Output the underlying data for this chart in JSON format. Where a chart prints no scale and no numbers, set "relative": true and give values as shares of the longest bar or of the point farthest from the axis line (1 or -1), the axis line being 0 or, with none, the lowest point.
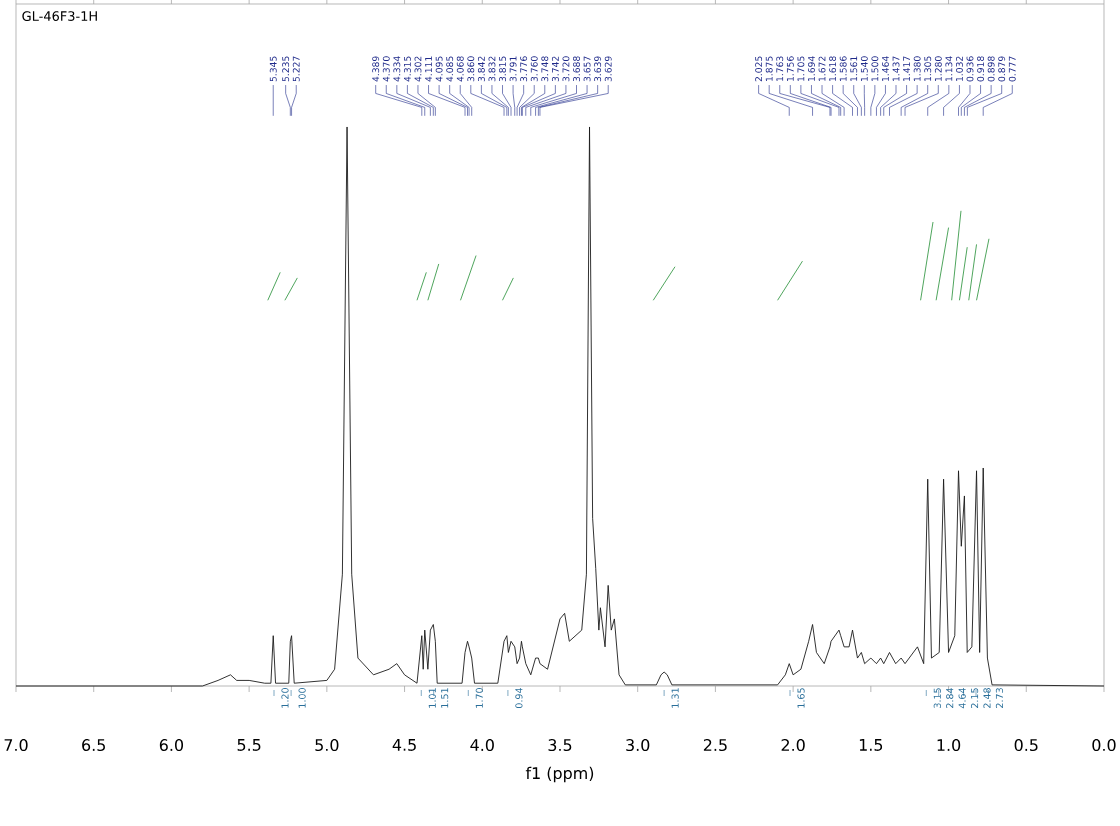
{
  "chart_data": {
    "type": "line",
    "title": "GL-46F3-1H",
    "xlabel": "f1 (ppm)",
    "relative": true,
    "xlim": [
      7.0,
      0.0
    ],
    "xticks": [
      {
        "value": 7,
        "label": "7.0"
      },
      {
        "value": 6.5,
        "label": "6.5"
      },
      {
        "value": 6,
        "label": "6.0"
      },
      {
        "value": 5.5,
        "label": "5.5"
      },
      {
        "value": 5,
        "label": "5.0"
      },
      {
        "value": 4.5,
        "label": "4.5"
      },
      {
        "value": 4,
        "label": "4.0"
      },
      {
        "value": 3.5,
        "label": "3.5"
      },
      {
        "value": 3,
        "label": "3.0"
      },
      {
        "value": 2.5,
        "label": "2.5"
      },
      {
        "value": 2,
        "label": "2.0"
      },
      {
        "value": 1.5,
        "label": "1.5"
      },
      {
        "value": 1,
        "label": "1.0"
      },
      {
        "value": 0.5,
        "label": "0.5"
      },
      {
        "value": 0,
        "label": "0.0"
      }
    ],
    "grid": false,
    "tick_labels": "x",
    "series": [
      {
        "color": "#1a1a1a",
        "x": [
          7.0,
          5.8,
          5.7,
          5.62,
          5.58,
          5.5,
          5.4,
          5.36,
          5.345,
          5.33,
          5.245,
          5.235,
          5.227,
          5.21,
          5.0,
          4.95,
          4.9,
          4.87,
          4.84,
          4.8,
          4.7,
          4.6,
          4.55,
          4.5,
          4.42,
          4.389,
          4.38,
          4.37,
          4.35,
          4.334,
          4.315,
          4.302,
          4.29,
          4.13,
          4.111,
          4.095,
          4.085,
          4.068,
          4.05,
          3.9,
          3.86,
          3.842,
          3.832,
          3.815,
          3.791,
          3.776,
          3.76,
          3.748,
          3.742,
          3.72,
          3.688,
          3.657,
          3.639,
          3.629,
          3.58,
          3.5,
          3.47,
          3.44,
          3.36,
          3.33,
          3.31,
          3.29,
          3.27,
          3.25,
          3.24,
          3.21,
          3.19,
          3.17,
          3.15,
          3.12,
          3.08,
          2.88,
          2.85,
          2.83,
          2.81,
          2.78,
          2.1,
          2.05,
          2.025,
          2.0,
          1.95,
          1.9,
          1.875,
          1.85,
          1.8,
          1.763,
          1.756,
          1.705,
          1.694,
          1.672,
          1.64,
          1.618,
          1.586,
          1.561,
          1.54,
          1.5,
          1.464,
          1.437,
          1.417,
          1.38,
          1.34,
          1.305,
          1.28,
          1.2,
          1.16,
          1.134,
          1.11,
          1.06,
          1.032,
          1.0,
          0.96,
          0.936,
          0.918,
          0.898,
          0.88,
          0.85,
          0.82,
          0.8,
          0.777,
          0.75,
          0.72,
          0.0
        ],
        "values": [
          0,
          0,
          0.01,
          0.02,
          0.01,
          0.01,
          0.005,
          0.005,
          0.09,
          0.005,
          0.005,
          0.08,
          0.09,
          0.005,
          0.01,
          0.03,
          0.2,
          1,
          0.2,
          0.05,
          0.02,
          0.03,
          0.04,
          0.02,
          0.005,
          0.09,
          0.03,
          0.1,
          0.03,
          0.1,
          0.11,
          0.08,
          0.005,
          0.005,
          0.06,
          0.08,
          0.07,
          0.05,
          0.005,
          0.005,
          0.08,
          0.09,
          0.06,
          0.08,
          0.07,
          0.04,
          0.05,
          0.08,
          0.07,
          0.04,
          0.02,
          0.05,
          0.05,
          0.04,
          0.03,
          0.12,
          0.13,
          0.08,
          0.1,
          0.2,
          1,
          0.3,
          0.21,
          0.1,
          0.14,
          0.07,
          0.18,
          0.1,
          0.12,
          0.02,
          0.002,
          0.002,
          0.02,
          0.025,
          0.02,
          0.002,
          0.002,
          0.02,
          0.04,
          0.02,
          0.03,
          0.08,
          0.11,
          0.06,
          0.04,
          0.07,
          0.08,
          0.1,
          0.09,
          0.07,
          0.07,
          0.1,
          0.05,
          0.06,
          0.04,
          0.05,
          0.04,
          0.05,
          0.04,
          0.06,
          0.04,
          0.05,
          0.04,
          0.07,
          0.04,
          0.37,
          0.05,
          0.06,
          0.37,
          0.06,
          0.09,
          0.385,
          0.25,
          0.34,
          0.06,
          0.07,
          0.385,
          0.06,
          0.39,
          0.05,
          0.002,
          0
        ]
      },
      {
        "color": "#3a9a4a",
        "x": [
          5.38,
          5.3
        ],
        "values": [
          0.69,
          0.74
        ]
      },
      {
        "color": "#3a9a4a",
        "x": [
          5.27,
          5.19
        ],
        "values": [
          0.69,
          0.73
        ]
      },
      {
        "color": "#3a9a4a",
        "x": [
          4.42,
          4.36
        ],
        "values": [
          0.69,
          0.74
        ]
      },
      {
        "color": "#3a9a4a",
        "x": [
          4.35,
          4.28
        ],
        "values": [
          0.69,
          0.755
        ]
      },
      {
        "color": "#3a9a4a",
        "x": [
          4.14,
          4.04
        ],
        "values": [
          0.69,
          0.77
        ]
      },
      {
        "color": "#3a9a4a",
        "x": [
          3.87,
          3.8
        ],
        "values": [
          0.69,
          0.73
        ]
      },
      {
        "color": "#3a9a4a",
        "x": [
          2.9,
          2.76
        ],
        "values": [
          0.69,
          0.75
        ]
      },
      {
        "color": "#3a9a4a",
        "x": [
          2.1,
          1.94
        ],
        "values": [
          0.69,
          0.76
        ]
      },
      {
        "color": "#3a9a4a",
        "x": [
          1.18,
          1.1
        ],
        "values": [
          0.69,
          0.83
        ]
      },
      {
        "color": "#3a9a4a",
        "x": [
          1.08,
          1.0
        ],
        "values": [
          0.69,
          0.82
        ]
      },
      {
        "color": "#3a9a4a",
        "x": [
          0.98,
          0.92
        ],
        "values": [
          0.69,
          0.85
        ]
      },
      {
        "color": "#3a9a4a",
        "x": [
          0.93,
          0.88
        ],
        "values": [
          0.69,
          0.785
        ]
      },
      {
        "color": "#3a9a4a",
        "x": [
          0.87,
          0.82
        ],
        "values": [
          0.69,
          0.79
        ]
      },
      {
        "color": "#3a9a4a",
        "x": [
          0.82,
          0.74
        ],
        "values": [
          0.69,
          0.8
        ]
      }
    ],
    "annotations": [
      {
        "text": "5.345",
        "x": 5.345
      },
      {
        "text": "5.235",
        "x": 5.235
      },
      {
        "text": "5.227",
        "x": 5.227
      },
      {
        "text": "4.389",
        "x": 4.389
      },
      {
        "text": "4.370",
        "x": 4.37
      },
      {
        "text": "4.334",
        "x": 4.334
      },
      {
        "text": "4.315",
        "x": 4.315
      },
      {
        "text": "4.302",
        "x": 4.302
      },
      {
        "text": "4.111",
        "x": 4.111
      },
      {
        "text": "4.095",
        "x": 4.095
      },
      {
        "text": "4.085",
        "x": 4.085
      },
      {
        "text": "4.068",
        "x": 4.068
      },
      {
        "text": "3.860",
        "x": 3.86
      },
      {
        "text": "3.842",
        "x": 3.842
      },
      {
        "text": "3.832",
        "x": 3.832
      },
      {
        "text": "3.815",
        "x": 3.815
      },
      {
        "text": "3.791",
        "x": 3.791
      },
      {
        "text": "3.776",
        "x": 3.776
      },
      {
        "text": "3.760",
        "x": 3.76
      },
      {
        "text": "3.748",
        "x": 3.748
      },
      {
        "text": "3.742",
        "x": 3.742
      },
      {
        "text": "3.720",
        "x": 3.72
      },
      {
        "text": "3.688",
        "x": 3.688
      },
      {
        "text": "3.657",
        "x": 3.657
      },
      {
        "text": "3.639",
        "x": 3.639
      },
      {
        "text": "3.629",
        "x": 3.629
      },
      {
        "text": "2.025",
        "x": 2.025
      },
      {
        "text": "1.875",
        "x": 1.875
      },
      {
        "text": "1.763",
        "x": 1.763
      },
      {
        "text": "1.756",
        "x": 1.756
      },
      {
        "text": "1.705",
        "x": 1.705
      },
      {
        "text": "1.694",
        "x": 1.694
      },
      {
        "text": "1.672",
        "x": 1.672
      },
      {
        "text": "1.618",
        "x": 1.618
      },
      {
        "text": "1.586",
        "x": 1.586
      },
      {
        "text": "1.561",
        "x": 1.561
      },
      {
        "text": "1.540",
        "x": 1.54
      },
      {
        "text": "1.500",
        "x": 1.5
      },
      {
        "text": "1.464",
        "x": 1.464
      },
      {
        "text": "1.437",
        "x": 1.437
      },
      {
        "text": "1.417",
        "x": 1.417
      },
      {
        "text": "1.380",
        "x": 1.38
      },
      {
        "text": "1.305",
        "x": 1.305
      },
      {
        "text": "1.280",
        "x": 1.28
      },
      {
        "text": "1.134",
        "x": 1.134
      },
      {
        "text": "1.032",
        "x": 1.032
      },
      {
        "text": "0.936",
        "x": 0.936
      },
      {
        "text": "0.918",
        "x": 0.918
      },
      {
        "text": "0.898",
        "x": 0.898
      },
      {
        "text": "0.879",
        "x": 0.879
      },
      {
        "text": "0.777",
        "x": 0.777
      },
      "1.20",
      "1.00",
      "1.01",
      "1.51",
      "1.70",
      "0.94",
      "1.31",
      "1.65",
      "3.15",
      "2.84",
      "4.64",
      "2.15",
      "2.48",
      "2.73"
    ]
  }
}
